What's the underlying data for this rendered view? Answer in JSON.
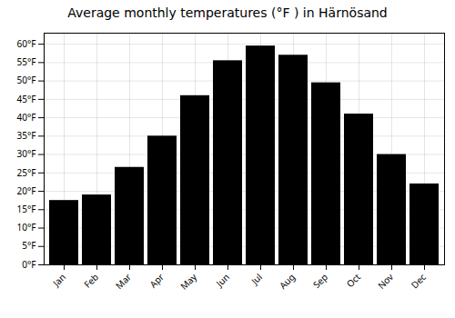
{
  "chart_data": {
    "type": "bar",
    "title": "Average monthly temperatures (°F ) in Härnösand",
    "categories": [
      "Jan",
      "Feb",
      "Mar",
      "Apr",
      "May",
      "Jun",
      "Jul",
      "Aug",
      "Sep",
      "Oct",
      "Nov",
      "Dec"
    ],
    "values": [
      17.5,
      19.0,
      26.5,
      35.0,
      46.0,
      55.5,
      59.5,
      57.0,
      49.5,
      41.0,
      30.0,
      22.0
    ],
    "ylim": [
      0,
      63
    ],
    "yticks": [
      {
        "value": 0,
        "label": "0°F"
      },
      {
        "value": 5,
        "label": "5°F"
      },
      {
        "value": 10,
        "label": "10°F"
      },
      {
        "value": 15,
        "label": "15°F"
      },
      {
        "value": 20,
        "label": "20°F"
      },
      {
        "value": 25,
        "label": "25°F"
      },
      {
        "value": 30,
        "label": "30°F"
      },
      {
        "value": 35,
        "label": "35°F"
      },
      {
        "value": 40,
        "label": "40°F"
      },
      {
        "value": 45,
        "label": "45°F"
      },
      {
        "value": 50,
        "label": "50°F"
      },
      {
        "value": 55,
        "label": "55°F"
      },
      {
        "value": 60,
        "label": "60°F"
      }
    ],
    "grid": true
  }
}
